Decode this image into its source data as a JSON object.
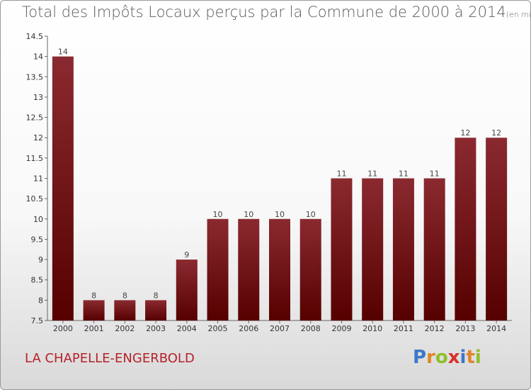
{
  "header": {
    "title": "Total des Impôts Locaux perçus par la Commune de 2000 à 2014",
    "unit": "(en milliers d'€)"
  },
  "footer": {
    "commune": "LA CHAPELLE-ENGERBOLD",
    "logo_letters": [
      "P",
      "r",
      "o",
      "x",
      "i",
      "t",
      "i"
    ],
    "logo_colors": [
      "#3a78c9",
      "#e0862a",
      "#8fbf2a",
      "#d7322b",
      "#3a78c9",
      "#e0862a",
      "#8fbf2a"
    ]
  },
  "chart_data": {
    "type": "bar",
    "categories": [
      "2000",
      "2001",
      "2002",
      "2003",
      "2004",
      "2005",
      "2006",
      "2007",
      "2008",
      "2009",
      "2010",
      "2011",
      "2012",
      "2013",
      "2014"
    ],
    "values": [
      14,
      8,
      8,
      8,
      9,
      10,
      10,
      10,
      10,
      11,
      11,
      11,
      11,
      12,
      12
    ],
    "title": "Total des Impôts Locaux perçus par la Commune de 2000 à 2014",
    "xlabel": "",
    "ylabel": "",
    "ylim": [
      7.5,
      14.5
    ],
    "yticks": [
      "7.5",
      "8",
      "8.5",
      "9",
      "9.5",
      "10",
      "10.5",
      "11",
      "11.5",
      "12",
      "12.5",
      "13",
      "13.5",
      "14",
      "14.5"
    ],
    "grid": false,
    "bar_color_top": "#8a2a30",
    "bar_color_bottom": "#560000"
  }
}
